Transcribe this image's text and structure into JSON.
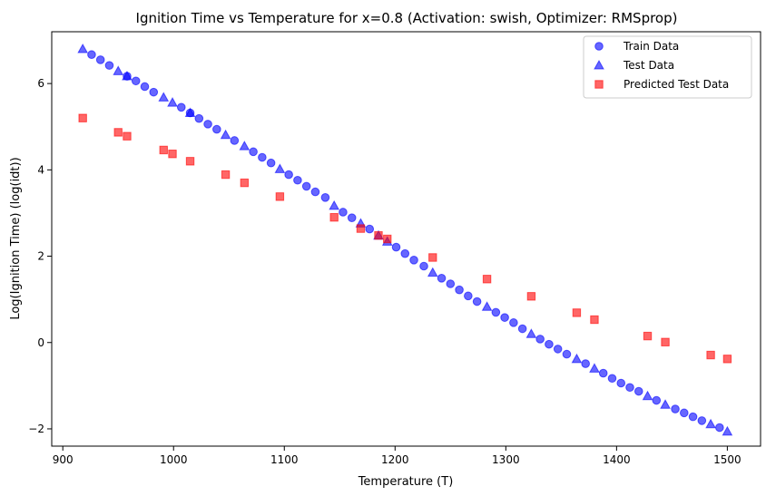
{
  "chart_data": {
    "type": "scatter",
    "title": "Ignition Time vs Temperature for x=0.8 (Activation: swish, Optimizer: RMSprop)",
    "xlabel": "Temperature (T)",
    "ylabel": "Log(Ignition Time) (log(idt))",
    "xlim": [
      890,
      1530
    ],
    "ylim": [
      -2.4,
      7.2
    ],
    "xticks": [
      900,
      1000,
      1100,
      1200,
      1300,
      1400,
      1500
    ],
    "yticks": [
      -2,
      0,
      2,
      4,
      6
    ],
    "grid": false,
    "legend_position": "top-right",
    "series": [
      {
        "name": "Train Data",
        "marker": "circle",
        "color": "#0000ff",
        "points": [
          [
            926,
            6.67
          ],
          [
            934,
            6.55
          ],
          [
            942,
            6.42
          ],
          [
            958,
            6.17
          ],
          [
            966,
            6.06
          ],
          [
            974,
            5.93
          ],
          [
            982,
            5.8
          ],
          [
            1007,
            5.45
          ],
          [
            1015,
            5.32
          ],
          [
            1023,
            5.19
          ],
          [
            1031,
            5.06
          ],
          [
            1039,
            4.94
          ],
          [
            1055,
            4.68
          ],
          [
            1072,
            4.42
          ],
          [
            1080,
            4.29
          ],
          [
            1088,
            4.16
          ],
          [
            1104,
            3.89
          ],
          [
            1112,
            3.76
          ],
          [
            1120,
            3.62
          ],
          [
            1128,
            3.49
          ],
          [
            1137,
            3.36
          ],
          [
            1153,
            3.02
          ],
          [
            1161,
            2.89
          ],
          [
            1177,
            2.63
          ],
          [
            1201,
            2.21
          ],
          [
            1209,
            2.06
          ],
          [
            1217,
            1.91
          ],
          [
            1226,
            1.77
          ],
          [
            1242,
            1.49
          ],
          [
            1250,
            1.36
          ],
          [
            1258,
            1.22
          ],
          [
            1266,
            1.08
          ],
          [
            1274,
            0.95
          ],
          [
            1291,
            0.7
          ],
          [
            1299,
            0.58
          ],
          [
            1307,
            0.46
          ],
          [
            1315,
            0.32
          ],
          [
            1331,
            0.08
          ],
          [
            1339,
            -0.04
          ],
          [
            1347,
            -0.15
          ],
          [
            1355,
            -0.27
          ],
          [
            1372,
            -0.49
          ],
          [
            1388,
            -0.71
          ],
          [
            1396,
            -0.83
          ],
          [
            1404,
            -0.94
          ],
          [
            1412,
            -1.04
          ],
          [
            1420,
            -1.13
          ],
          [
            1436,
            -1.34
          ],
          [
            1453,
            -1.54
          ],
          [
            1461,
            -1.63
          ],
          [
            1469,
            -1.72
          ],
          [
            1477,
            -1.81
          ],
          [
            1493,
            -1.97
          ]
        ]
      },
      {
        "name": "Test Data",
        "marker": "triangle",
        "color": "#0000ff",
        "points": [
          [
            918,
            6.8
          ],
          [
            950,
            6.29
          ],
          [
            958,
            6.17
          ],
          [
            991,
            5.68
          ],
          [
            999,
            5.56
          ],
          [
            1015,
            5.32
          ],
          [
            1047,
            4.81
          ],
          [
            1064,
            4.55
          ],
          [
            1096,
            4.02
          ],
          [
            1145,
            3.17
          ],
          [
            1169,
            2.76
          ],
          [
            1185,
            2.48
          ],
          [
            1193,
            2.34
          ],
          [
            1234,
            1.62
          ],
          [
            1283,
            0.83
          ],
          [
            1323,
            0.2
          ],
          [
            1364,
            -0.38
          ],
          [
            1380,
            -0.6
          ],
          [
            1428,
            -1.24
          ],
          [
            1444,
            -1.44
          ],
          [
            1485,
            -1.89
          ],
          [
            1500,
            -2.06
          ]
        ]
      },
      {
        "name": "Predicted Test Data",
        "marker": "square",
        "color": "#ff0000",
        "points": [
          [
            918,
            5.2
          ],
          [
            950,
            4.87
          ],
          [
            958,
            4.78
          ],
          [
            991,
            4.46
          ],
          [
            999,
            4.37
          ],
          [
            1015,
            4.2
          ],
          [
            1047,
            3.89
          ],
          [
            1064,
            3.7
          ],
          [
            1096,
            3.38
          ],
          [
            1145,
            2.9
          ],
          [
            1169,
            2.64
          ],
          [
            1185,
            2.48
          ],
          [
            1193,
            2.4
          ],
          [
            1234,
            1.97
          ],
          [
            1283,
            1.47
          ],
          [
            1323,
            1.07
          ],
          [
            1364,
            0.69
          ],
          [
            1380,
            0.53
          ],
          [
            1428,
            0.15
          ],
          [
            1444,
            0.01
          ],
          [
            1485,
            -0.29
          ],
          [
            1500,
            -0.38
          ]
        ]
      }
    ]
  }
}
